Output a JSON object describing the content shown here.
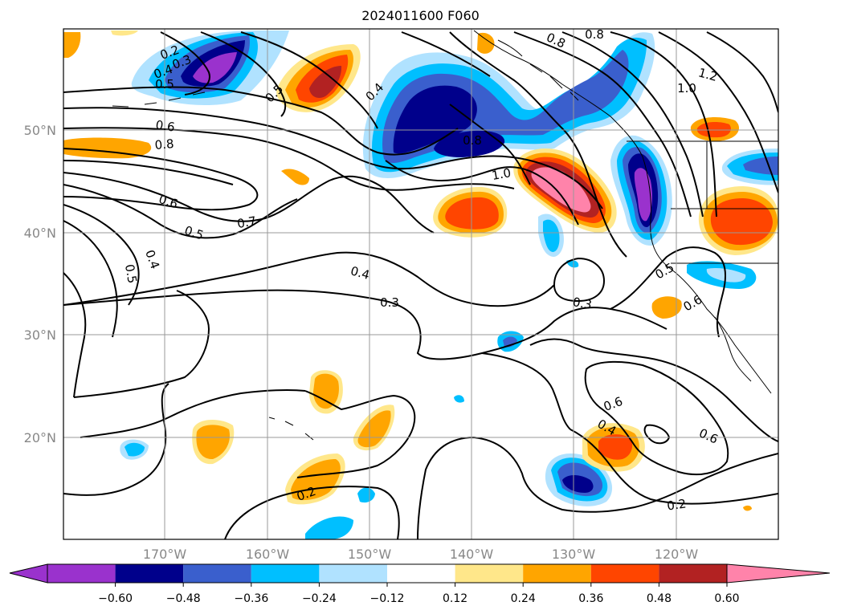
{
  "title": "2024011600 F060",
  "map": {
    "lon_labels": [
      "170°W",
      "160°W",
      "150°W",
      "140°W",
      "130°W",
      "120°W"
    ],
    "lat_labels": [
      "50°N",
      "40°N",
      "30°N",
      "20°N"
    ],
    "contour_labels": [
      "0.2",
      "0.3",
      "0.4",
      "0.5",
      "0.5",
      "0.4",
      "0.6",
      "0.8",
      "0.6",
      "0.7",
      "0.5",
      "0.4",
      "0.5",
      "0.4",
      "0.3",
      "0.3",
      "0.8",
      "1.0",
      "0.8",
      "0.8",
      "1.2",
      "1.0",
      "0.6",
      "0.6",
      "0.4",
      "0.2",
      "0.6",
      "0.5",
      "0.2"
    ]
  },
  "colorbar": {
    "tick_labels": [
      "−0.60",
      "−0.48",
      "−0.36",
      "−0.24",
      "−0.12",
      "0.12",
      "0.24",
      "0.36",
      "0.48",
      "0.60"
    ],
    "colors": [
      "#9a32cd",
      "#00008b",
      "#3a5fcd",
      "#00bfff",
      "#b0e2ff",
      "#ffffff",
      "#ffe78a",
      "#ffa500",
      "#ff4500",
      "#b22222",
      "#ff83aa"
    ]
  }
}
